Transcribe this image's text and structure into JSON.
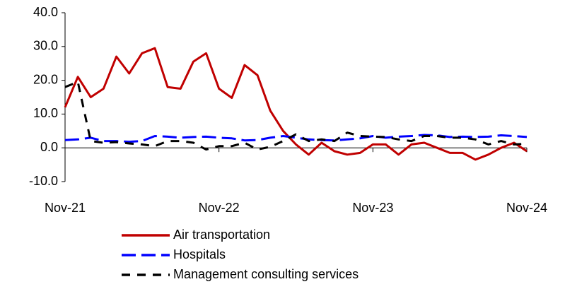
{
  "chart_data": {
    "type": "line",
    "categories": [
      "Nov-21",
      null,
      null,
      null,
      null,
      null,
      null,
      null,
      null,
      null,
      null,
      null,
      "Nov-22",
      null,
      null,
      null,
      null,
      null,
      null,
      null,
      null,
      null,
      null,
      null,
      "Nov-23",
      null,
      null,
      null,
      null,
      null,
      null,
      null,
      null,
      null,
      null,
      null,
      "Nov-24"
    ],
    "series": [
      {
        "name": "Air transportation",
        "color": "#c00000",
        "dash": "none",
        "values": [
          12,
          21,
          15,
          17.5,
          27,
          22,
          28,
          29.5,
          18,
          17.5,
          25.5,
          28,
          17.5,
          14.8,
          24.5,
          21.5,
          11,
          5,
          1,
          -2,
          1.5,
          -1,
          -2,
          -1.5,
          1,
          1,
          -2,
          1,
          1.5,
          0,
          -1.5,
          -1.5,
          -3.5,
          -2,
          0,
          1.5,
          -1
        ]
      },
      {
        "name": "Hospitals",
        "color": "#0000ff",
        "dash": "20,8",
        "values": [
          2.3,
          2.5,
          3,
          2,
          2,
          1.8,
          2,
          3.5,
          3.3,
          3,
          3.2,
          3.3,
          3,
          2.8,
          2.2,
          2.3,
          3,
          3.5,
          3,
          2.5,
          2.3,
          2.2,
          2.5,
          2.8,
          3.5,
          3,
          3.3,
          3.5,
          3.8,
          3.7,
          3.2,
          3.3,
          3.2,
          3.3,
          3.7,
          3.5,
          3.2
        ]
      },
      {
        "name": "Management consulting services",
        "color": "#000000",
        "dash": "12,10",
        "values": [
          18,
          19.5,
          2,
          1.5,
          1.7,
          1.3,
          1,
          0.5,
          2,
          2,
          1.5,
          -0.5,
          0.5,
          0.5,
          1.5,
          -0.5,
          0.3,
          2,
          4,
          2,
          2.5,
          2,
          4.5,
          3.5,
          3.3,
          3.2,
          2.5,
          2,
          3.5,
          3.5,
          3,
          3,
          2.5,
          1,
          2,
          1,
          1.2
        ]
      }
    ],
    "ylim": [
      -10,
      40
    ],
    "yticks": [
      {
        "value": -10,
        "label": "-10.0"
      },
      {
        "value": 0,
        "label": "0.0"
      },
      {
        "value": 10,
        "label": "10.0"
      },
      {
        "value": 20,
        "label": "20.0"
      },
      {
        "value": 30,
        "label": "30.0"
      },
      {
        "value": 40,
        "label": "40.0"
      }
    ],
    "grid": false,
    "legend": "bottom"
  }
}
